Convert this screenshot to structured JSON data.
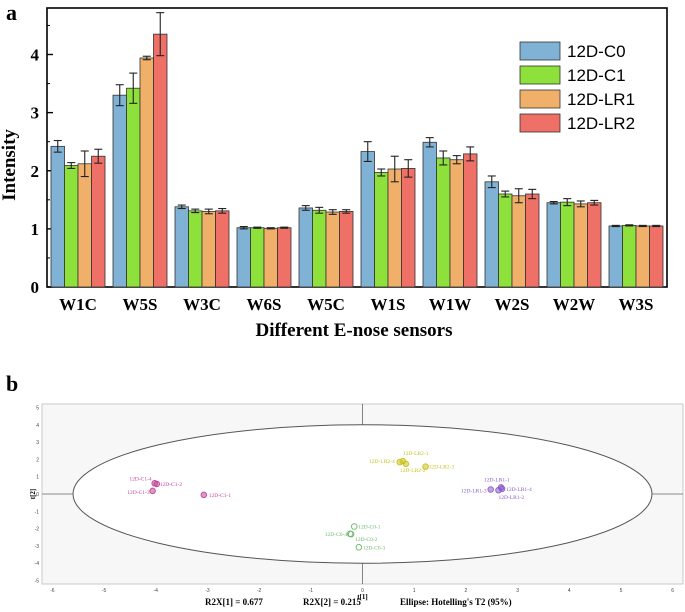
{
  "panel_a": {
    "label": "a",
    "chart_data": {
      "type": "bar",
      "categories": [
        "W1C",
        "W5S",
        "W3C",
        "W6S",
        "W5C",
        "W1S",
        "W1W",
        "W2S",
        "W2W",
        "W3S"
      ],
      "series": [
        {
          "name": "12D-C0",
          "color": "#7fb2d5",
          "values": [
            2.42,
            3.3,
            1.38,
            1.02,
            1.36,
            2.33,
            2.49,
            1.81,
            1.45,
            1.05
          ],
          "errors": [
            0.1,
            0.18,
            0.03,
            0.02,
            0.04,
            0.17,
            0.08,
            0.1,
            0.02,
            0.01
          ]
        },
        {
          "name": "12D-C1",
          "color": "#8ee03a",
          "values": [
            2.09,
            3.42,
            1.31,
            1.02,
            1.32,
            1.97,
            2.22,
            1.6,
            1.46,
            1.06
          ],
          "errors": [
            0.05,
            0.26,
            0.03,
            0.01,
            0.05,
            0.06,
            0.12,
            0.05,
            0.06,
            0.01
          ]
        },
        {
          "name": "12D-LR1",
          "color": "#f0b06a",
          "values": [
            2.12,
            3.94,
            1.3,
            1.01,
            1.29,
            2.03,
            2.19,
            1.57,
            1.43,
            1.05
          ],
          "errors": [
            0.22,
            0.03,
            0.04,
            0.01,
            0.04,
            0.22,
            0.07,
            0.12,
            0.05,
            0.01
          ]
        },
        {
          "name": "12D-LR2",
          "color": "#ef7067",
          "values": [
            2.25,
            4.35,
            1.31,
            1.02,
            1.3,
            2.04,
            2.29,
            1.6,
            1.45,
            1.05
          ],
          "errors": [
            0.12,
            0.37,
            0.04,
            0.01,
            0.03,
            0.15,
            0.12,
            0.08,
            0.04,
            0.01
          ]
        }
      ],
      "xlabel": "Different E-nose sensors",
      "ylabel": "Intensity",
      "ylim": [
        0,
        4.8
      ],
      "yticks": [
        0,
        1,
        2,
        3,
        4
      ],
      "legend_position": "top-right",
      "grid": false
    }
  },
  "panel_b": {
    "label": "b",
    "chart_data": {
      "type": "scatter",
      "xlabel": "t[1]",
      "ylabel": "t[2]",
      "xlim": [
        -6.2,
        6.2
      ],
      "ylim": [
        -5.2,
        5.2
      ],
      "xticks": [
        "-6",
        "-5",
        "-4",
        "-3",
        "-2",
        "-1",
        "0",
        "1",
        "2",
        "3",
        "4",
        "5",
        "6"
      ],
      "yticks": [
        "5",
        "4",
        "3",
        "2",
        "1",
        "0",
        "-1",
        "-2",
        "-3",
        "-4",
        "-5"
      ],
      "series": [
        {
          "group": "12D-C1",
          "color": "#c0439c",
          "points": [
            {
              "label": "12D-C1-1",
              "x": -3.07,
              "y": -0.05
            },
            {
              "label": "12D-C1-2",
              "x": -3.98,
              "y": 0.58
            },
            {
              "label": "12D-C1-3",
              "x": -4.06,
              "y": 0.18
            },
            {
              "label": "12D-C1-4",
              "x": -4.02,
              "y": 0.62
            }
          ]
        },
        {
          "group": "12D-LR2",
          "color": "#c8c21a",
          "points": [
            {
              "label": "12D-LR2-1",
              "x": 0.78,
              "y": 1.9
            },
            {
              "label": "12D-LR2-2",
              "x": 0.84,
              "y": 1.74
            },
            {
              "label": "12D-LR2-3",
              "x": 1.22,
              "y": 1.58
            },
            {
              "label": "12D-LR2-4",
              "x": 0.72,
              "y": 1.84
            }
          ]
        },
        {
          "group": "12D-LR1",
          "color": "#8a5cc8",
          "points": [
            {
              "label": "12D-LR1-1",
              "x": 2.68,
              "y": 0.38
            },
            {
              "label": "12D-LR1-2",
              "x": 2.63,
              "y": 0.22
            },
            {
              "label": "12D-LR1-3",
              "x": 2.48,
              "y": 0.26
            },
            {
              "label": "12D-LR1-4",
              "x": 2.7,
              "y": 0.3
            }
          ]
        },
        {
          "group": "12D-C0",
          "color": "#6bb86b",
          "points": [
            {
              "label": "12D-C0-1",
              "x": -0.16,
              "y": -1.88
            },
            {
              "label": "12D-C0-2",
              "x": -0.22,
              "y": -2.32
            },
            {
              "label": "12D-C0-3",
              "x": -0.07,
              "y": -3.08
            },
            {
              "label": "12D-C0-4",
              "x": -0.24,
              "y": -2.3
            }
          ]
        }
      ],
      "ellipse": {
        "cx": 0,
        "cy": 0,
        "rx": 5.6,
        "ry": 4.0
      },
      "footer": {
        "r2x1": "R2X[1] = 0.677",
        "r2x2": "R2X[2] = 0.215",
        "ellipse_note": "Ellipse: Hotelling's T2 (95%)"
      }
    }
  }
}
